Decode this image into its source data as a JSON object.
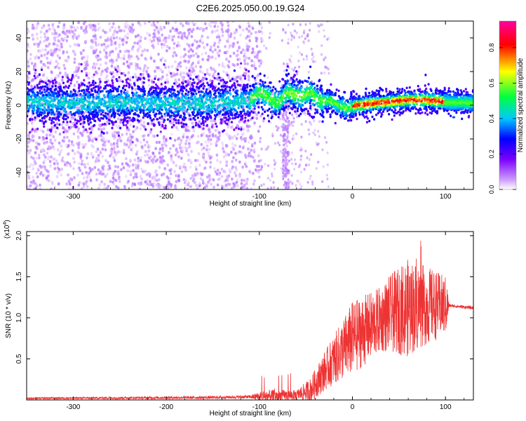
{
  "title": "C2E6.2025.050.00.19.G24",
  "colorbar": {
    "label": "Normalized spectral amplitude",
    "ticks": [
      "0.0",
      "0.2",
      "0.4",
      "0.6",
      "0.8"
    ],
    "tick_values": [
      0.0,
      0.2,
      0.4,
      0.6,
      0.8
    ],
    "range": [
      0,
      0.95
    ],
    "colors": [
      "#ffffff",
      "#7a00ff",
      "#0000ff",
      "#00c8ff",
      "#00ff40",
      "#ffff00",
      "#ff0000",
      "#ff00a0"
    ]
  },
  "chart_data": [
    {
      "type": "heatmap",
      "xlabel": "Height of straight line (km)",
      "ylabel": "Frequency (Hz)",
      "xlim": [
        -350,
        130
      ],
      "ylim": [
        -50,
        50
      ],
      "xticks": [
        -300,
        -200,
        -100,
        0,
        100
      ],
      "xtick_labels": [
        "-300",
        "-200",
        "-100",
        "0",
        "100"
      ],
      "yticks": [
        -40,
        -20,
        0,
        20,
        40
      ],
      "ytick_labels": [
        "-40",
        "-20",
        "0",
        "20",
        "40"
      ],
      "ridge": [
        {
          "x": -350,
          "y": 2
        },
        {
          "x": -300,
          "y": 1
        },
        {
          "x": -250,
          "y": 2
        },
        {
          "x": -200,
          "y": 1
        },
        {
          "x": -150,
          "y": 1
        },
        {
          "x": -110,
          "y": 3
        },
        {
          "x": -100,
          "y": 8
        },
        {
          "x": -90,
          "y": 4
        },
        {
          "x": -80,
          "y": 1
        },
        {
          "x": -70,
          "y": 8
        },
        {
          "x": -55,
          "y": 5
        },
        {
          "x": -45,
          "y": 8
        },
        {
          "x": -35,
          "y": 2
        },
        {
          "x": -25,
          "y": 3
        },
        {
          "x": -15,
          "y": 0
        },
        {
          "x": -5,
          "y": -2
        },
        {
          "x": 5,
          "y": 0
        },
        {
          "x": 20,
          "y": 1
        },
        {
          "x": 40,
          "y": 2
        },
        {
          "x": 60,
          "y": 3
        },
        {
          "x": 80,
          "y": 3
        },
        {
          "x": 100,
          "y": 2
        },
        {
          "x": 130,
          "y": 1.5
        }
      ]
    },
    {
      "type": "line",
      "xlabel": "Height of straight line (km)",
      "ylabel": "SNR (10 * v/v)",
      "multiplier": "(x10",
      "multiplier_exp": "4",
      "multiplier_close": ")",
      "xlim": [
        -350,
        130
      ],
      "ylim": [
        0,
        2.05
      ],
      "xticks": [
        -300,
        -200,
        -100,
        0,
        100
      ],
      "xtick_labels": [
        "-300",
        "-200",
        "-100",
        "0",
        "100"
      ],
      "yticks": [
        0.5,
        1.0,
        1.5,
        2.0
      ],
      "ytick_labels": [
        "0.5",
        "1.0",
        "1.5",
        "2.0"
      ],
      "series": [
        {
          "color": "#ee3333",
          "baseline": [
            {
              "x": -350,
              "y": 0.02
            },
            {
              "x": -150,
              "y": 0.03
            },
            {
              "x": -100,
              "y": 0.04
            },
            {
              "x": -60,
              "y": 0.06
            },
            {
              "x": -45,
              "y": 0.12
            },
            {
              "x": -30,
              "y": 0.35
            },
            {
              "x": -15,
              "y": 0.55
            },
            {
              "x": 0,
              "y": 0.75
            },
            {
              "x": 20,
              "y": 0.9
            },
            {
              "x": 40,
              "y": 1.05
            },
            {
              "x": 60,
              "y": 1.12
            },
            {
              "x": 80,
              "y": 1.15
            },
            {
              "x": 100,
              "y": 1.15
            },
            {
              "x": 103,
              "y": 1.15
            },
            {
              "x": 130,
              "y": 1.12
            }
          ],
          "spread": [
            {
              "x": -350,
              "y": 0.01
            },
            {
              "x": -110,
              "y": 0.02
            },
            {
              "x": -95,
              "y": 0.08
            },
            {
              "x": -60,
              "y": 0.06
            },
            {
              "x": -45,
              "y": 0.15
            },
            {
              "x": -20,
              "y": 0.3
            },
            {
              "x": 0,
              "y": 0.45
            },
            {
              "x": 30,
              "y": 0.4
            },
            {
              "x": 60,
              "y": 0.6
            },
            {
              "x": 85,
              "y": 0.45
            },
            {
              "x": 101,
              "y": 0.35
            },
            {
              "x": 104,
              "y": 0.02
            },
            {
              "x": 130,
              "y": 0.02
            }
          ]
        }
      ]
    }
  ]
}
